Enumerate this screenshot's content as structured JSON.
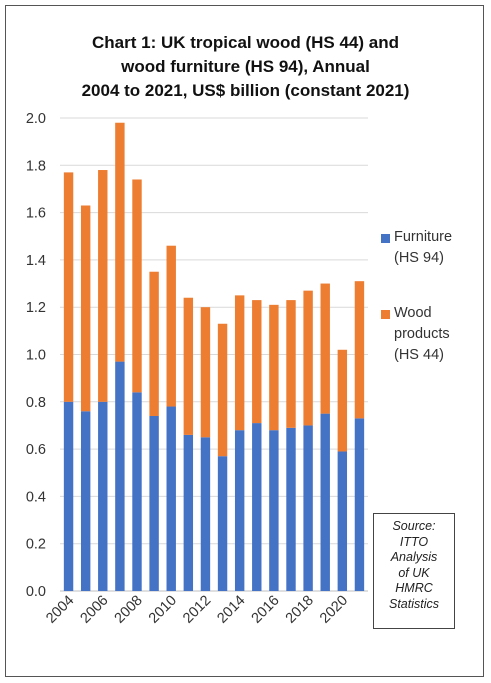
{
  "title_lines": [
    "Chart 1: UK tropical wood (HS 44) and",
    "wood furniture (HS 94), Annual",
    "2004 to 2021, US$ billion (constant 2021)"
  ],
  "legend": {
    "furniture_lines": [
      "Furniture",
      "(HS 94)"
    ],
    "wood_lines": [
      "Wood",
      "products",
      "(HS 44)"
    ]
  },
  "source_lines": [
    "Source:",
    "ITTO",
    "Analysis",
    "of UK",
    "HMRC",
    "Statistics"
  ],
  "colors": {
    "furniture": "#4472C4",
    "wood_products": "#ED7D31",
    "grid": "#d9d9d9"
  },
  "chart_data": {
    "type": "bar",
    "stacked": true,
    "categories": [
      "2004",
      "2005",
      "2006",
      "2007",
      "2008",
      "2009",
      "2010",
      "2011",
      "2012",
      "2013",
      "2014",
      "2015",
      "2016",
      "2017",
      "2018",
      "2019",
      "2020",
      "2021"
    ],
    "x_tick_labels": [
      "2004",
      "2006",
      "2008",
      "2010",
      "2012",
      "2014",
      "2016",
      "2018",
      "2020"
    ],
    "series": [
      {
        "name": "Furniture (HS 94)",
        "values": [
          0.8,
          0.76,
          0.8,
          0.97,
          0.84,
          0.74,
          0.78,
          0.66,
          0.65,
          0.57,
          0.68,
          0.71,
          0.68,
          0.69,
          0.7,
          0.75,
          0.59,
          0.73
        ]
      },
      {
        "name": "Wood products (HS 44)",
        "values": [
          0.97,
          0.87,
          0.98,
          1.01,
          0.9,
          0.61,
          0.68,
          0.58,
          0.55,
          0.56,
          0.57,
          0.52,
          0.53,
          0.54,
          0.57,
          0.55,
          0.43,
          0.58
        ]
      }
    ],
    "ylim": [
      0,
      2.0
    ],
    "y_tick_labels": [
      "0.0",
      "0.2",
      "0.4",
      "0.6",
      "0.8",
      "1.0",
      "1.2",
      "1.4",
      "1.6",
      "1.8",
      "2.0"
    ],
    "grid": true,
    "legend_position": "right"
  }
}
